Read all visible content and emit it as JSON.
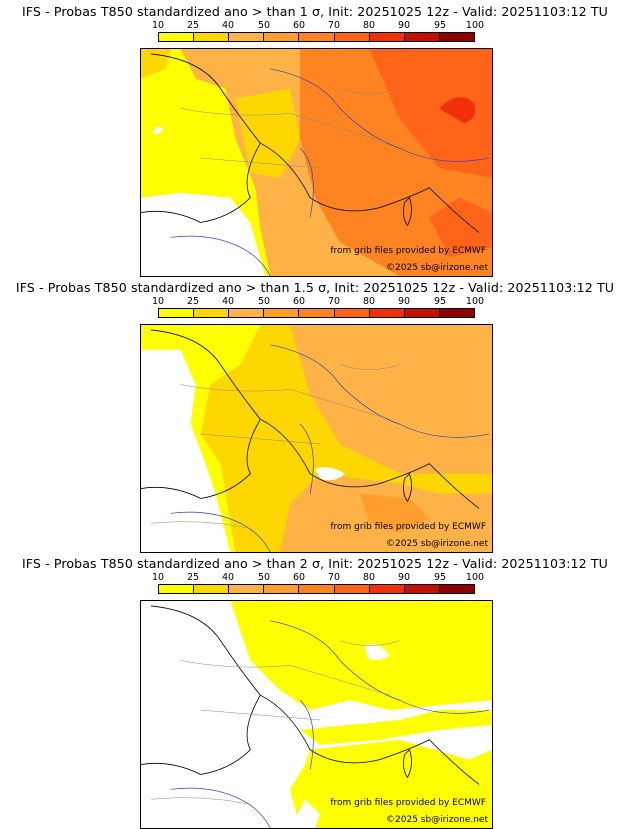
{
  "colorbar": {
    "labels": [
      "10",
      "25",
      "40",
      "50",
      "60",
      "70",
      "80",
      "90",
      "95",
      "100"
    ],
    "colors": [
      "#ffff00",
      "#ffd700",
      "#ffb347",
      "#ff9e2c",
      "#ff8320",
      "#ff6418",
      "#f0300a",
      "#c41000",
      "#8e0000"
    ]
  },
  "panels": [
    {
      "title": "IFS - Probas T850  standardized ano > than 1 σ, Init: 20251025 12z - Valid: 20251103:12 TU",
      "source_credit": "from grib files provided by ECMWF",
      "copyright": "©2025 sb@irizone.net"
    },
    {
      "title": "IFS - Probas T850  standardized ano > than 1.5 σ, Init: 20251025 12z - Valid: 20251103:12 TU",
      "source_credit": "from grib files provided by ECMWF",
      "copyright": "©2025 sb@irizone.net"
    },
    {
      "title": "IFS - Probas T850  standardized ano > than 2 σ, Init: 20251025 12z - Valid: 20251103:12 TU",
      "source_credit": "from grib files provided by ECMWF",
      "copyright": "©2025 sb@irizone.net"
    }
  ]
}
